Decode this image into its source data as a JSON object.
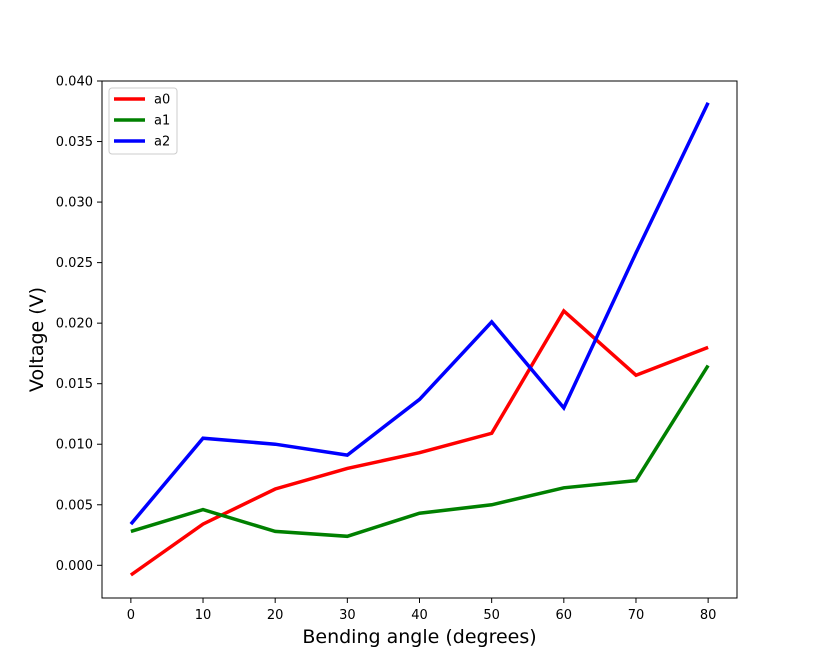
{
  "chart_data": {
    "type": "line",
    "title": "",
    "xlabel": "Bending angle (degrees)",
    "ylabel": "Voltage (V)",
    "x": [
      0,
      10,
      20,
      30,
      40,
      50,
      60,
      70,
      80
    ],
    "xlim": [
      -4,
      84
    ],
    "ylim": [
      -0.0027,
      0.04
    ],
    "xticks": [
      0,
      10,
      20,
      30,
      40,
      50,
      60,
      70,
      80
    ],
    "xtick_labels": [
      "0",
      "10",
      "20",
      "30",
      "40",
      "50",
      "60",
      "70",
      "80"
    ],
    "yticks": [
      0.0,
      0.005,
      0.01,
      0.015,
      0.02,
      0.025,
      0.03,
      0.035,
      0.04
    ],
    "ytick_labels": [
      "0.000",
      "0.005",
      "0.010",
      "0.015",
      "0.020",
      "0.025",
      "0.030",
      "0.035",
      "0.040"
    ],
    "grid": false,
    "legend_position": "top-left",
    "series": [
      {
        "name": "a0",
        "color": "#ff0000",
        "values": [
          -0.0008,
          0.0034,
          0.0063,
          0.008,
          0.0093,
          0.0109,
          0.021,
          0.0157,
          0.018
        ]
      },
      {
        "name": "a1",
        "color": "#008000",
        "values": [
          0.0028,
          0.0046,
          0.0028,
          0.0024,
          0.0043,
          0.005,
          0.0064,
          0.007,
          0.0165
        ]
      },
      {
        "name": "a2",
        "color": "#0000ff",
        "values": [
          0.0034,
          0.0105,
          0.01,
          0.0091,
          0.0137,
          0.0201,
          0.013,
          0.0258,
          0.0382
        ]
      }
    ]
  }
}
